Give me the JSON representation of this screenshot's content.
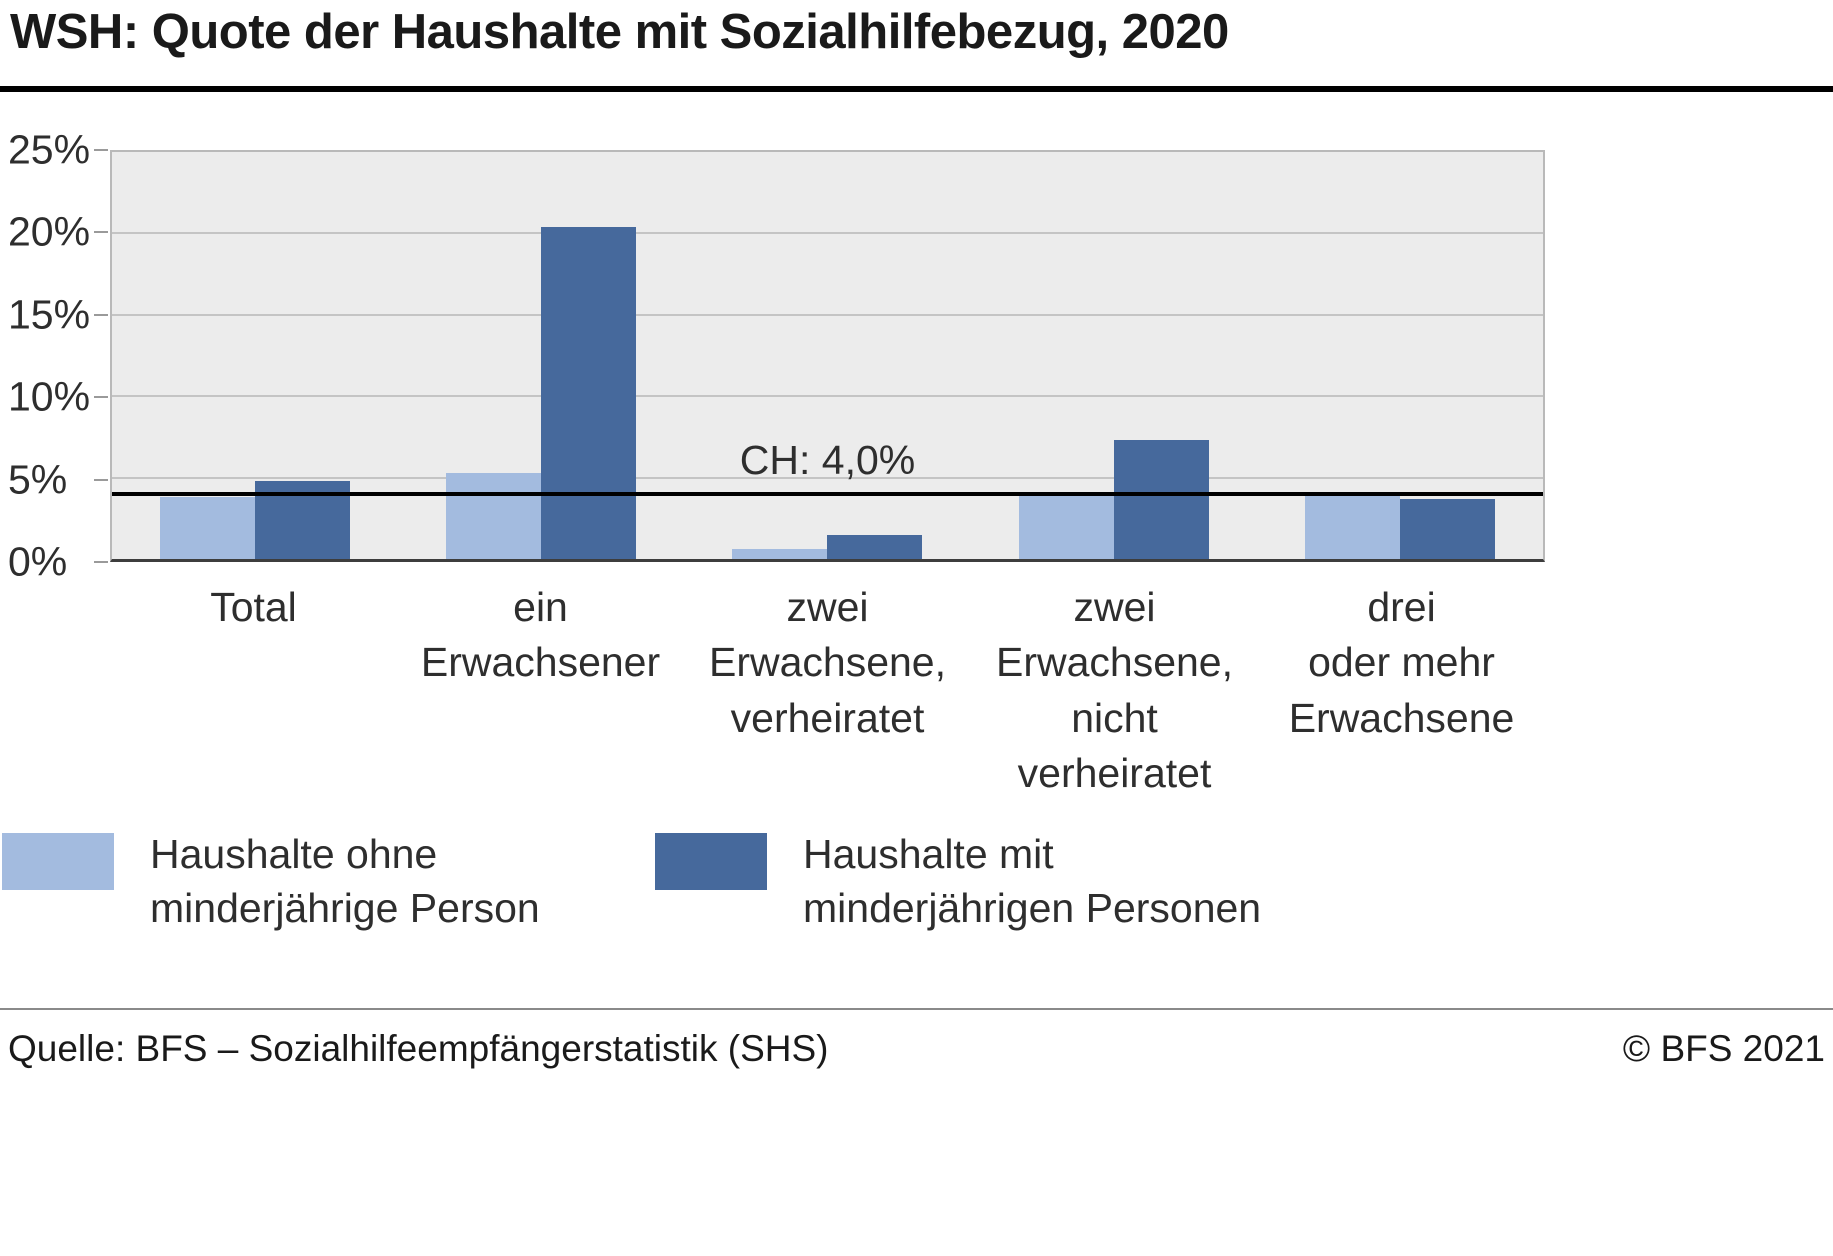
{
  "title": "WSH: Quote der Haushalte mit Sozialhilfebezug, 2020",
  "footer": {
    "source": "Quelle: BFS – Sozialhilfeempfängerstatistik (SHS)",
    "copyright": "© BFS 2021"
  },
  "chart_data": {
    "type": "bar",
    "title": "WSH: Quote der Haushalte mit Sozialhilfebezug, 2020",
    "ylim": [
      0,
      25
    ],
    "yticks": [
      0,
      5,
      10,
      15,
      20,
      25
    ],
    "ytick_labels": [
      "0%",
      "5%",
      "10%",
      "15%",
      "20%",
      "25%"
    ],
    "grid": true,
    "legend_position": "bottom",
    "plot_background": "#ececec",
    "categories": [
      "Total",
      "ein\nErwachsener",
      "zwei\nErwachsene,\nverheiratet",
      "zwei\nErwachsene,\nnicht\nverheiratet",
      "drei\noder mehr\nErwachsene"
    ],
    "series": [
      {
        "name": "Haushalte ohne\nminderjährige Person",
        "color": "#a3bbdf",
        "values": [
          3.8,
          5.3,
          0.6,
          4.0,
          4.0
        ]
      },
      {
        "name": "Haushalte mit\nminderjährigen Personen",
        "color": "#46699c",
        "values": [
          4.8,
          20.4,
          1.5,
          7.3,
          3.7
        ]
      }
    ],
    "reference_line": {
      "label": "CH: 4,0%",
      "value": 4.0,
      "color": "#000000"
    }
  }
}
